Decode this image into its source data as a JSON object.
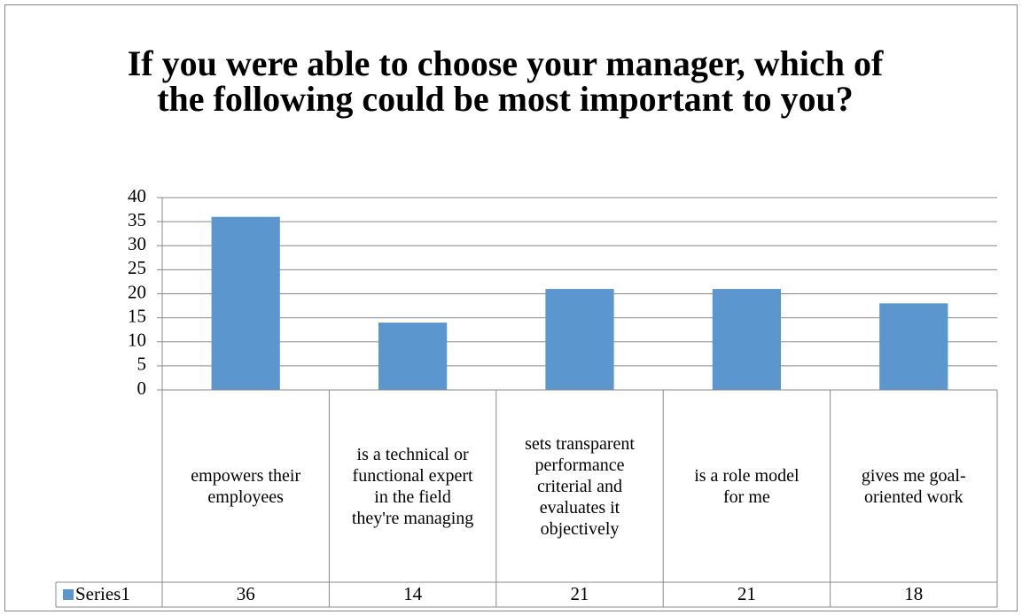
{
  "chart_data": {
    "type": "bar",
    "title": "If you were able to choose your manager, which of the following could be most important to you?",
    "categories": [
      "empowers their employees",
      "is a technical or functional expert in the field they're managing",
      "sets transparent performance criterial and evaluates it objectively",
      "is a role model for me",
      "gives me goal-oriented work"
    ],
    "series": [
      {
        "name": "Series1",
        "color": "#5b96cf",
        "values": [
          36,
          14,
          21,
          21,
          18
        ]
      }
    ],
    "ylim": [
      0,
      40
    ],
    "yticks": [
      0,
      5,
      10,
      15,
      20,
      25,
      30,
      35,
      40
    ],
    "grid": true,
    "data_table": true
  }
}
